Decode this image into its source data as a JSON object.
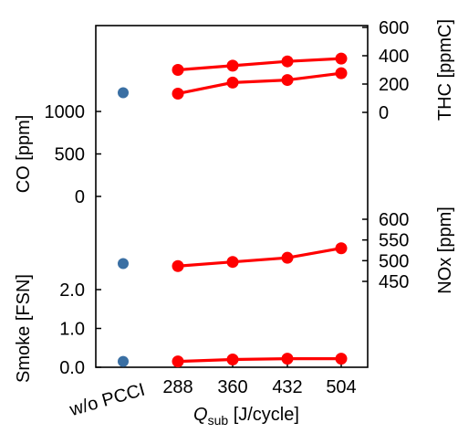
{
  "chart_data": {
    "type": "line",
    "x": {
      "label_main": "Q",
      "label_sub": "sub",
      "label_unit": " [J/cycle]",
      "categories": [
        "288",
        "360",
        "432",
        "504"
      ],
      "baseline_category": "w/o PCCI"
    },
    "colors": {
      "series": "#ff0000",
      "baseline": "#3a6fa3"
    },
    "panels": [
      {
        "id": "thc",
        "axis_side": "right",
        "ylabel": "THC [ppmC]",
        "ticks": [
          "0",
          "200",
          "400",
          "600"
        ],
        "ylim": [
          0,
          600
        ],
        "values": [
          300,
          330,
          360,
          380
        ],
        "baseline": null
      },
      {
        "id": "co",
        "axis_side": "left",
        "ylabel": "CO [ppm]",
        "ticks": [
          "0",
          "500",
          "1000"
        ],
        "ylim": [
          0,
          1000
        ],
        "values": [
          1210,
          1340,
          1370,
          1450
        ],
        "baseline": 1220
      },
      {
        "id": "nox",
        "axis_side": "right",
        "ylabel": "NOx [ppm]",
        "ticks": [
          "450",
          "500",
          "550",
          "600"
        ],
        "ylim": [
          450,
          600
        ],
        "values": [
          487,
          497,
          507,
          530
        ],
        "baseline": null
      },
      {
        "id": "smoke",
        "axis_side": "left",
        "ylabel": "Smoke [FSN]",
        "ticks": [
          "0.0",
          "1.0",
          "2.0"
        ],
        "ylim": [
          0,
          2
        ],
        "values": [
          0.15,
          0.2,
          0.22,
          0.22
        ],
        "baseline": 0.15,
        "baseline_extra": 2.67
      }
    ]
  }
}
